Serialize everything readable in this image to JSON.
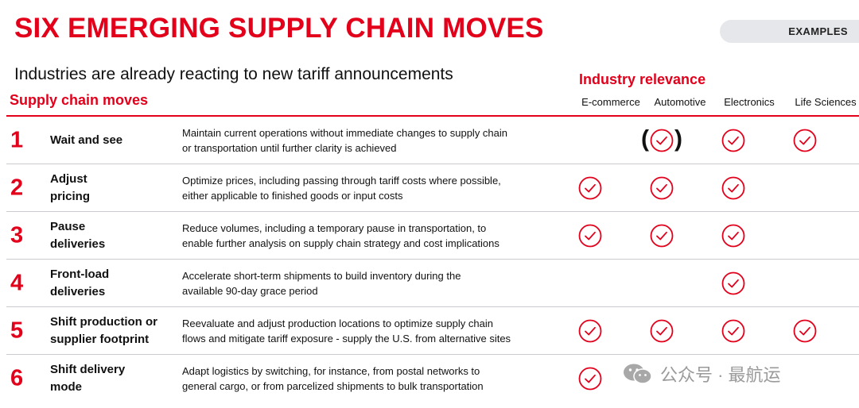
{
  "header": {
    "title": "SIX EMERGING SUPPLY CHAIN MOVES",
    "examples_label": "EXAMPLES",
    "subtitle": "Industries are already reacting to new tariff announcements",
    "moves_heading": "Supply chain moves",
    "relevance_heading": "Industry relevance"
  },
  "columns": [
    "E-commerce",
    "Automotive",
    "Electronics",
    "Life Sciences"
  ],
  "colors": {
    "accent": "#e3001b",
    "rule": "#c9cbd0",
    "pill": "#e6e7ea"
  },
  "rows": [
    {
      "number": "1",
      "name_lines": [
        "Wait and see"
      ],
      "desc_lines": [
        "Maintain current operations without immediate changes to supply chain",
        "or transportation until further clarity is achieved"
      ],
      "marks": [
        false,
        "partial",
        true,
        true
      ]
    },
    {
      "number": "2",
      "name_lines": [
        "Adjust",
        "pricing"
      ],
      "desc_lines": [
        "Optimize prices, including passing through tariff costs where possible,",
        "either applicable to finished goods or input costs"
      ],
      "marks": [
        true,
        true,
        true,
        false
      ]
    },
    {
      "number": "3",
      "name_lines": [
        "Pause",
        "deliveries"
      ],
      "desc_lines": [
        "Reduce volumes, including a temporary pause in transportation, to",
        "enable further analysis on supply chain strategy and cost implications"
      ],
      "marks": [
        true,
        true,
        true,
        false
      ]
    },
    {
      "number": "4",
      "name_lines": [
        "Front-load",
        "deliveries"
      ],
      "desc_lines": [
        "Accelerate short-term shipments to build inventory during the",
        "available 90-day grace period"
      ],
      "marks": [
        false,
        false,
        true,
        false
      ]
    },
    {
      "number": "5",
      "name_lines": [
        "Shift production or",
        "supplier footprint"
      ],
      "desc_lines": [
        "Reevaluate and adjust production locations to optimize supply chain",
        "flows and mitigate tariff exposure - supply the U.S. from alternative sites"
      ],
      "marks": [
        true,
        true,
        true,
        true
      ]
    },
    {
      "number": "6",
      "name_lines": [
        "Shift delivery",
        "mode"
      ],
      "desc_lines": [
        "Adapt logistics by switching, for instance, from postal networks to",
        "general cargo, or from parcelized shipments to bulk transportation"
      ],
      "marks": [
        true,
        false,
        false,
        false
      ]
    }
  ],
  "watermark": {
    "icon": "wechat-icon",
    "text": "公众号 · 最航运"
  }
}
